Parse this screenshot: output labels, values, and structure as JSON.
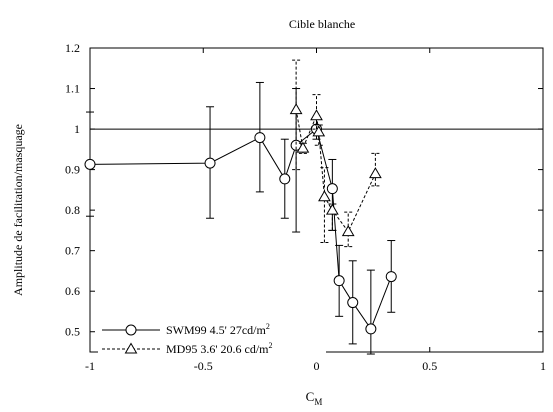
{
  "chart_data": {
    "type": "scatter",
    "title": "Cible blanche",
    "xlabel": "C",
    "xlabel_subscript": "M",
    "ylabel": "Amplitude de facilitation/masquage",
    "xlim": [
      -1,
      1
    ],
    "ylim": [
      0.45,
      1.2
    ],
    "xticks": [
      -1,
      -0.5,
      0,
      0.5,
      1
    ],
    "xtick_labels": [
      "-1",
      "-0.5",
      "0",
      "0.5",
      "1"
    ],
    "yticks": [
      0.5,
      0.6,
      0.7,
      0.8,
      0.9,
      1.0,
      1.1,
      1.2
    ],
    "ytick_labels": [
      "0.5",
      "0.6",
      "0.7",
      "0.8",
      "0.9",
      "1",
      "1.1",
      "1.2"
    ],
    "reference_line": 1.0,
    "grid": false,
    "legend_position": "bottom-left",
    "series": [
      {
        "name": "SWM99 4.5' 27cd/m",
        "name_superscript": "2",
        "marker": "circle",
        "line_style": "solid",
        "x": [
          -1.0,
          -0.47,
          -0.25,
          -0.14,
          -0.09,
          0.0,
          0.07,
          0.1,
          0.16,
          0.24,
          0.33
        ],
        "y": [
          0.913,
          0.916,
          0.979,
          0.877,
          0.96,
          1.0,
          0.853,
          0.626,
          0.572,
          0.507,
          0.636
        ],
        "err_low": [
          0.785,
          0.78,
          0.845,
          0.78,
          0.746,
          0.975,
          0.75,
          0.538,
          0.47,
          0.445,
          0.548
        ],
        "err_high": [
          1.042,
          1.055,
          1.115,
          0.975,
          1.1,
          1.025,
          0.925,
          0.713,
          0.675,
          0.652,
          0.725
        ]
      },
      {
        "name": "MD95 3.6' 20.6 cd/m",
        "name_superscript": "2",
        "marker": "triangle",
        "line_style": "dashed",
        "x": [
          -0.09,
          -0.06,
          0.0,
          0.01,
          0.035,
          0.07,
          0.14,
          0.26
        ],
        "y": [
          1.048,
          0.953,
          1.033,
          0.993,
          0.833,
          0.8,
          0.747,
          0.89
        ],
        "err_low": [
          0.9,
          0.94,
          1.0,
          0.96,
          0.72,
          0.75,
          0.71,
          0.86
        ],
        "err_high": [
          1.17,
          0.965,
          1.085,
          1.01,
          0.905,
          0.815,
          0.795,
          0.94
        ]
      }
    ]
  }
}
